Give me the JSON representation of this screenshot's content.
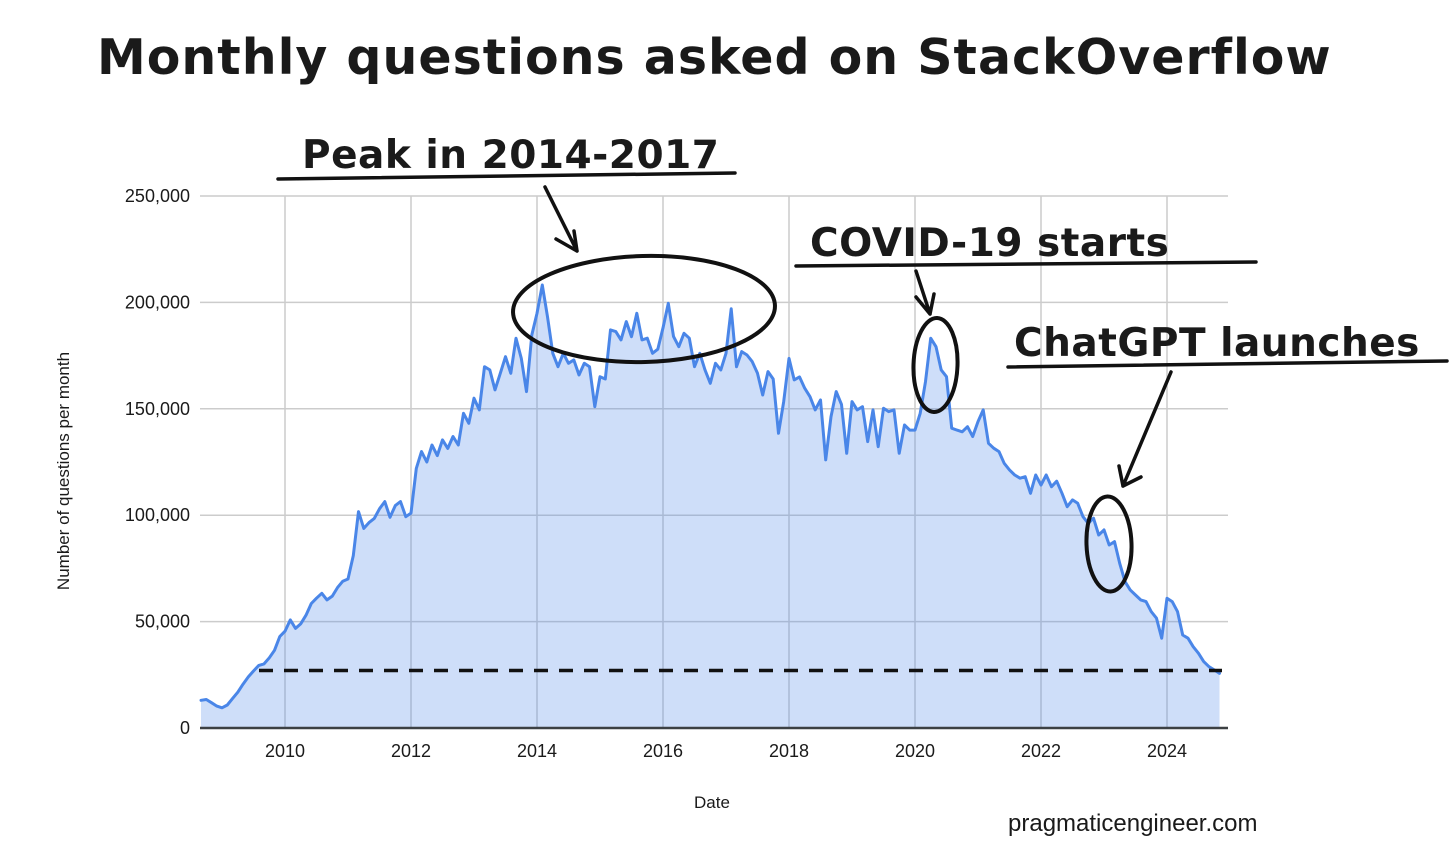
{
  "title": "Monthly questions asked on StackOverflow",
  "footer": "pragmaticengineer.com",
  "footer_color": "#e9750f",
  "chart_data": {
    "type": "area",
    "title": "Monthly questions asked on StackOverflow",
    "xlabel": "Date",
    "ylabel": "Number of questions per month",
    "series_name": "Monthly questions",
    "x_start_year": 2008.6667,
    "x_step_years": 0.083333,
    "xlim": [
      2008.6,
      2025.0
    ],
    "ylim": [
      0,
      250000
    ],
    "grid": true,
    "legend": "none",
    "x_ticks": [
      2010,
      2012,
      2014,
      2016,
      2018,
      2020,
      2022,
      2024
    ],
    "y_ticks": [
      0,
      50000,
      100000,
      150000,
      200000,
      250000
    ],
    "y_tick_labels": [
      "0",
      "50,000",
      "100,000",
      "150,000",
      "200,000",
      "250,000"
    ],
    "line_color": "#4a86e8",
    "fill_color": "rgba(74,134,232,0.27)",
    "dashed_reference_value": 27000,
    "values": [
      13000,
      13400,
      11900,
      10300,
      9500,
      10800,
      13800,
      16800,
      20600,
      24000,
      26800,
      29400,
      30100,
      33000,
      36500,
      43000,
      45500,
      50800,
      46800,
      49000,
      53000,
      58500,
      61000,
      63300,
      60200,
      62000,
      66000,
      69000,
      70000,
      81000,
      101700,
      93800,
      96500,
      98500,
      103000,
      106400,
      99000,
      104500,
      106400,
      99300,
      101000,
      122000,
      129900,
      125000,
      133000,
      128000,
      135400,
      131400,
      137000,
      133000,
      147900,
      143200,
      155000,
      149500,
      169800,
      168300,
      158900,
      166700,
      174500,
      166700,
      183200,
      173700,
      158100,
      184700,
      194900,
      208200,
      193300,
      176100,
      169800,
      176100,
      171400,
      173000,
      165900,
      171400,
      169800,
      151000,
      165100,
      164000,
      187100,
      186300,
      182400,
      191000,
      183900,
      194900,
      182400,
      183200,
      176100,
      178000,
      188000,
      199600,
      184000,
      179200,
      185500,
      183200,
      169800,
      176100,
      168300,
      162000,
      171400,
      168300,
      176100,
      197000,
      169800,
      176900,
      175300,
      172200,
      166700,
      156500,
      167500,
      164000,
      138500,
      153400,
      173700,
      163600,
      165000,
      159700,
      155700,
      149500,
      154200,
      126000,
      146300,
      158100,
      152000,
      129100,
      153400,
      149500,
      151000,
      134600,
      149500,
      132200,
      150300,
      148700,
      149500,
      129100,
      142400,
      140000,
      140000,
      147900,
      162800,
      183200,
      179200,
      168300,
      165100,
      140900,
      140000,
      139200,
      141600,
      137000,
      144000,
      149500,
      133800,
      131500,
      129900,
      124400,
      121300,
      118900,
      117400,
      118100,
      110300,
      118900,
      114200,
      118900,
      113400,
      116000,
      110300,
      104000,
      107200,
      105600,
      99300,
      96200,
      98600,
      90700,
      93100,
      86000,
      87600,
      77400,
      68800,
      64900,
      62500,
      60200,
      59400,
      54700,
      51600,
      42200,
      61000,
      59400,
      54700,
      43700,
      42200,
      38200,
      35100,
      31200,
      28800,
      27300,
      25700
    ],
    "annotations": [
      {
        "label": "Peak in 2014-2017",
        "target": "high plateau of ~170,000-208,000 questions during 2014-2017"
      },
      {
        "label": "COVID-19 starts",
        "target": "spike to ~183,000 in April 2020"
      },
      {
        "label": "ChatGPT launches",
        "target": "steep drop below 100,000 starting late 2022"
      }
    ]
  }
}
